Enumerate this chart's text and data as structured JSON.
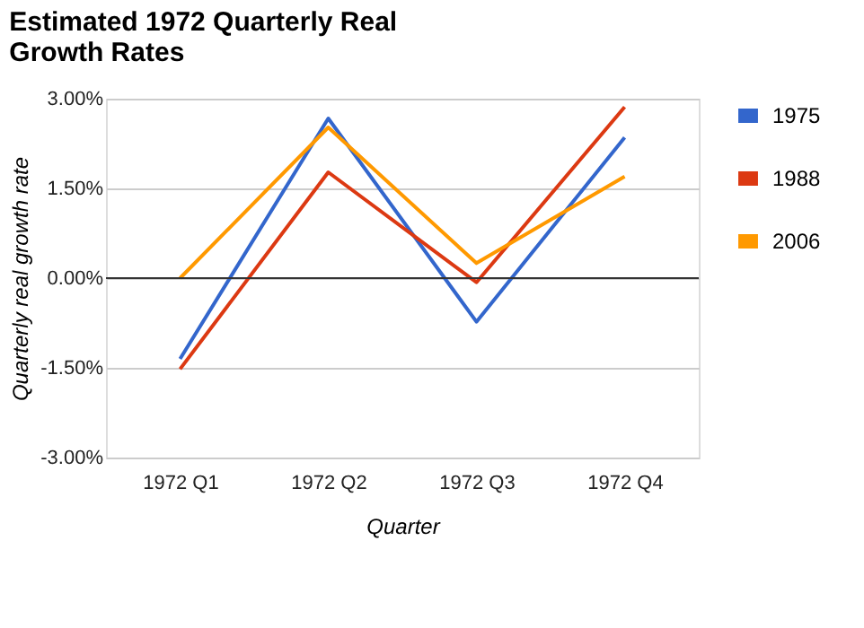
{
  "chart_data": {
    "type": "line",
    "title": "Estimated 1972 Quarterly Real Growth Rates",
    "xlabel": "Quarter",
    "ylabel": "Quarterly real growth rate",
    "categories": [
      "1972 Q1",
      "1972 Q2",
      "1972 Q3",
      "1972 Q4"
    ],
    "series": [
      {
        "name": "1975",
        "color": "#3366cc",
        "values": [
          -1.35,
          2.67,
          -0.73,
          2.35
        ]
      },
      {
        "name": "1988",
        "color": "#dc3912",
        "values": [
          -1.52,
          1.77,
          -0.07,
          2.86
        ]
      },
      {
        "name": "2006",
        "color": "#ff9900",
        "values": [
          0,
          2.52,
          0.25,
          1.7
        ]
      }
    ],
    "ylim": [
      -3,
      3
    ],
    "yticks": [
      {
        "value": -3,
        "label": "-3.00%"
      },
      {
        "value": -1.5,
        "label": "-1.50%"
      },
      {
        "value": 0,
        "label": "0.00%"
      },
      {
        "value": 1.5,
        "label": "1.50%"
      },
      {
        "value": 3,
        "label": "3.00%"
      }
    ],
    "ref_lines": [
      {
        "axis": "y",
        "value": 0,
        "color": "#333333"
      }
    ],
    "grid": "y",
    "legend": "top right",
    "marker": "none",
    "line_style": "solid"
  }
}
